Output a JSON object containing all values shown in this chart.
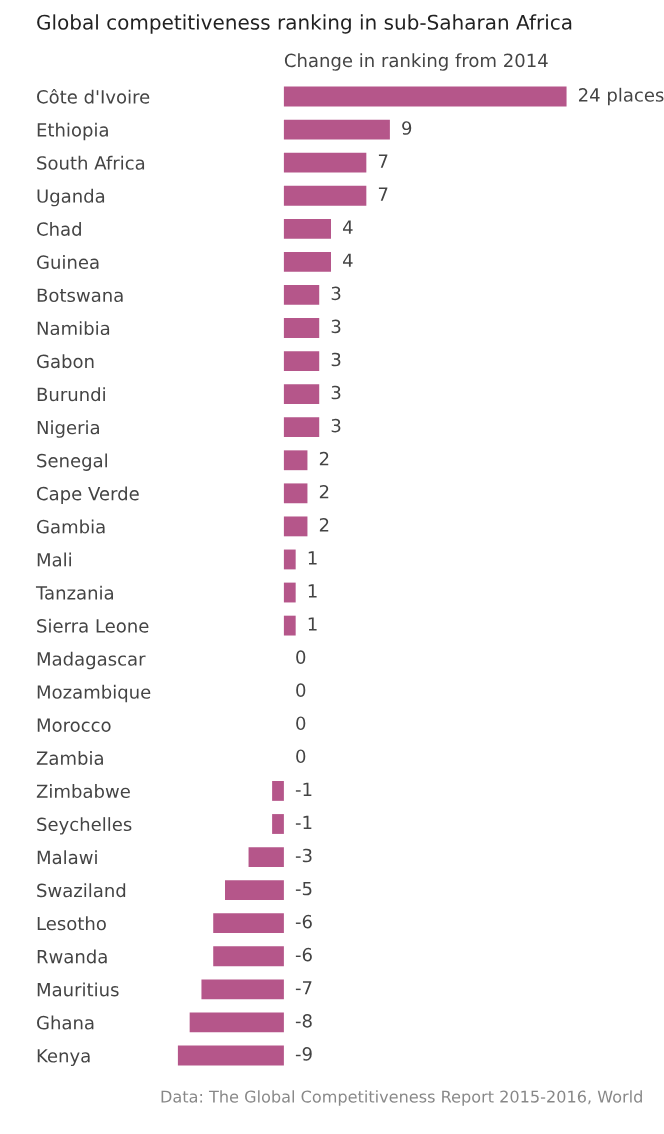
{
  "chart_data": {
    "type": "bar",
    "orientation": "horizontal",
    "title": "Global competitiveness ranking in sub-Saharan Africa",
    "xlabel": "Change in ranking from 2014",
    "categories": [
      "Côte d'Ivoire",
      "Ethiopia",
      "South Africa",
      "Uganda",
      "Chad",
      "Guinea",
      "Botswana",
      "Namibia",
      "Gabon",
      "Burundi",
      "Nigeria",
      "Senegal",
      "Cape Verde",
      "Gambia",
      "Mali",
      "Tanzania",
      "Sierra Leone",
      "Madagascar",
      "Mozambique",
      "Morocco",
      "Zambia",
      "Zimbabwe",
      "Seychelles",
      "Malawi",
      "Swaziland",
      "Lesotho",
      "Rwanda",
      "Mauritius",
      "Ghana",
      "Kenya"
    ],
    "values": [
      24,
      9,
      7,
      7,
      4,
      4,
      3,
      3,
      3,
      3,
      3,
      2,
      2,
      2,
      1,
      1,
      1,
      0,
      0,
      0,
      0,
      -1,
      -1,
      -3,
      -5,
      -6,
      -6,
      -7,
      -8,
      -9
    ],
    "value_labels": [
      "24 places",
      "9",
      "7",
      "7",
      "4",
      "4",
      "3",
      "3",
      "3",
      "3",
      "3",
      "2",
      "2",
      "2",
      "1",
      "1",
      "1",
      "0",
      "0",
      "0",
      "0",
      "-1",
      "-1",
      "-3",
      "-5",
      "-6",
      "-6",
      "-7",
      "-8",
      "-9"
    ],
    "color": "#b5568a",
    "tick_labels": "y",
    "grid": false,
    "legend": false,
    "annotations": [
      "Data: The Global Competitiveness Report 2015-2016, World"
    ]
  }
}
